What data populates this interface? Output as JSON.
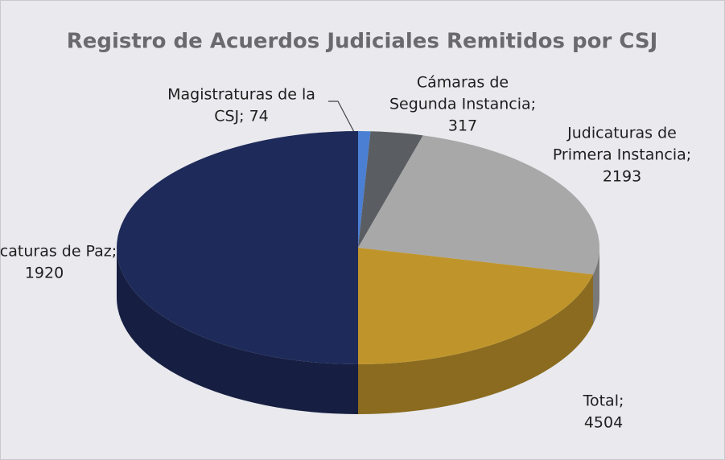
{
  "chart_data": {
    "type": "pie",
    "title": "Registro de Acuerdos Judiciales Remitidos por CSJ",
    "values": [
      74,
      317,
      2193,
      1920,
      4504
    ],
    "value_labels": [
      [
        "Magistraturas de la",
        "CSJ; 74"
      ],
      [
        "Cámaras de",
        "Segunda Instancia;",
        "317"
      ],
      [
        "Judicaturas de",
        "Primera Instancia;",
        "2193"
      ],
      [
        "Judicaturas de Paz;",
        "1920"
      ],
      [
        "Total;",
        "4504"
      ]
    ],
    "colors": [
      "#4a7fd4",
      "#5a5e63",
      "#a8a8a8",
      "#bf952b",
      "#1e2b5a"
    ]
  }
}
